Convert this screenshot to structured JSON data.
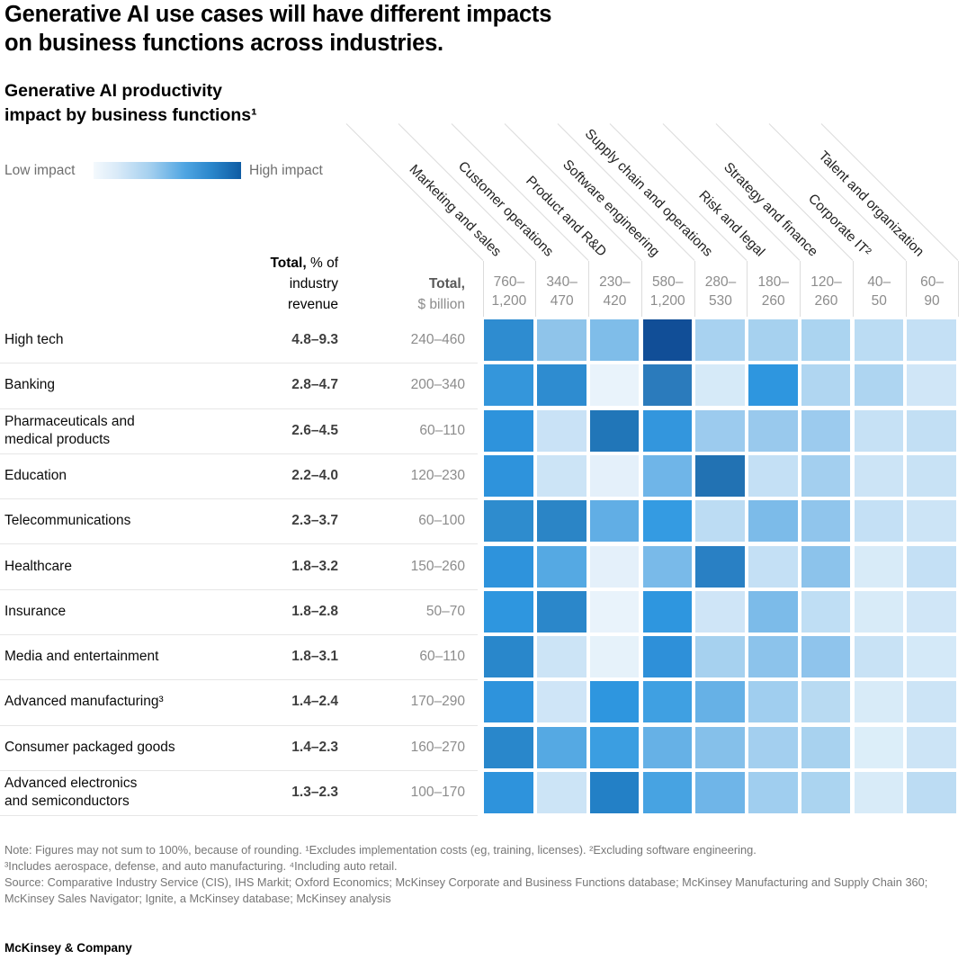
{
  "header": {
    "title": "Generative AI use cases will have different impacts\non business functions across industries.",
    "subtitle": "Generative AI productivity\nimpact by business functions¹"
  },
  "legend": {
    "low_label": "Low impact",
    "high_label": "High impact"
  },
  "table": {
    "pct_header": {
      "bold": "Total,",
      "line1": "% of",
      "line2": "industry",
      "line3": "revenue"
    },
    "usd_header": {
      "bold": "Total,",
      "line2": "$ billion"
    }
  },
  "chart_data": {
    "type": "heatmap",
    "title": "Generative AI productivity impact by business functions¹",
    "legend": {
      "low": "Low impact",
      "high": "High impact",
      "low_color": "#e9f3fb",
      "high_color": "#114e97"
    },
    "columns": [
      {
        "label": "Marketing and sales",
        "total_usd_billion": "760–\n1,200"
      },
      {
        "label": "Customer operations",
        "total_usd_billion": "340–\n470"
      },
      {
        "label": "Product and R&D",
        "total_usd_billion": "230–\n420"
      },
      {
        "label": "Software engineering",
        "total_usd_billion": "580–\n1,200"
      },
      {
        "label": "Supply chain and operations",
        "total_usd_billion": "280–\n530"
      },
      {
        "label": "Risk and legal",
        "total_usd_billion": "180–\n260"
      },
      {
        "label": "Strategy and finance",
        "total_usd_billion": "120–\n260"
      },
      {
        "label": "Corporate IT²",
        "total_usd_billion": "40–\n50"
      },
      {
        "label": "Talent and organization",
        "total_usd_billion": "60–\n90"
      }
    ],
    "rows": [
      {
        "label": "High tech",
        "pct_of_revenue": "4.8–9.3",
        "usd_billion": "240–460",
        "cell_colors": [
          "#2e8cd0",
          "#8fc4ea",
          "#7fbde9",
          "#114e97",
          "#a8d2f0",
          "#a6d1ef",
          "#abd4f0",
          "#bbdcf3",
          "#c4e0f5"
        ],
        "impact_0to1": [
          0.75,
          0.4,
          0.42,
          1.0,
          0.33,
          0.33,
          0.32,
          0.27,
          0.24
        ]
      },
      {
        "label": "Banking",
        "pct_of_revenue": "2.8–4.7",
        "usd_billion": "200–340",
        "cell_colors": [
          "#3496db",
          "#2e8cd0",
          "#e9f3fb",
          "#2b7bbc",
          "#d6eaf8",
          "#2e96df",
          "#b0d6f1",
          "#aed5f1",
          "#d0e6f7"
        ],
        "impact_0to1": [
          0.7,
          0.75,
          0.05,
          0.82,
          0.15,
          0.72,
          0.3,
          0.31,
          0.17
        ]
      },
      {
        "label": "Pharmaceuticals and\nmedical products",
        "pct_of_revenue": "2.6–4.5",
        "usd_billion": "60–110",
        "cell_colors": [
          "#2e93dc",
          "#c9e2f6",
          "#2176b8",
          "#3396dd",
          "#9ccbee",
          "#99c9ed",
          "#9ccbee",
          "#c6e1f5",
          "#c2dff4"
        ],
        "impact_0to1": [
          0.72,
          0.21,
          0.87,
          0.7,
          0.38,
          0.39,
          0.38,
          0.22,
          0.23
        ]
      },
      {
        "label": "Education",
        "pct_of_revenue": "2.2–4.0",
        "usd_billion": "120–230",
        "cell_colors": [
          "#2e93dc",
          "#cce4f6",
          "#e4f0fa",
          "#6fb5e8",
          "#2272b3",
          "#c4e0f5",
          "#a3cfef",
          "#cce4f6",
          "#c8e2f5"
        ],
        "impact_0to1": [
          0.72,
          0.2,
          0.08,
          0.52,
          0.89,
          0.23,
          0.35,
          0.2,
          0.21
        ]
      },
      {
        "label": "Telecommunications",
        "pct_of_revenue": "2.3–3.7",
        "usd_billion": "60–100",
        "cell_colors": [
          "#2e8cce",
          "#2b85c6",
          "#61aee5",
          "#349be2",
          "#bcdcf3",
          "#7cbbe9",
          "#90c5ec",
          "#c4e0f5",
          "#cce4f6"
        ],
        "impact_0to1": [
          0.76,
          0.78,
          0.57,
          0.68,
          0.26,
          0.49,
          0.41,
          0.23,
          0.2
        ]
      },
      {
        "label": "Healthcare",
        "pct_of_revenue": "1.8–3.2",
        "usd_billion": "150–260",
        "cell_colors": [
          "#2e93dc",
          "#55a9e3",
          "#e4f0fa",
          "#79bae9",
          "#2980c4",
          "#c4e0f5",
          "#8cc3eb",
          "#d8ebf8",
          "#c4e0f5"
        ],
        "impact_0to1": [
          0.72,
          0.62,
          0.08,
          0.5,
          0.8,
          0.23,
          0.44,
          0.13,
          0.23
        ]
      },
      {
        "label": "Insurance",
        "pct_of_revenue": "1.8–2.8",
        "usd_billion": "50–70",
        "cell_colors": [
          "#2e96df",
          "#2b87ca",
          "#e9f3fb",
          "#2e96df",
          "#cfe5f7",
          "#7cbbe9",
          "#bfdef4",
          "#d8ebf8",
          "#d0e6f7"
        ],
        "impact_0to1": [
          0.71,
          0.78,
          0.05,
          0.71,
          0.19,
          0.49,
          0.25,
          0.13,
          0.18
        ]
      },
      {
        "label": "Media and entertainment",
        "pct_of_revenue": "1.8–3.1",
        "usd_billion": "60–110",
        "cell_colors": [
          "#2987cb",
          "#cce4f6",
          "#e6f2fa",
          "#2e90d9",
          "#a6d1ef",
          "#8cc3eb",
          "#8fc4ec",
          "#c8e2f5",
          "#d4e9f8"
        ],
        "impact_0to1": [
          0.78,
          0.2,
          0.07,
          0.73,
          0.33,
          0.44,
          0.43,
          0.21,
          0.15
        ]
      },
      {
        "label": "Advanced manufacturing³",
        "pct_of_revenue": "1.4–2.4",
        "usd_billion": "170–290",
        "cell_colors": [
          "#2e93dc",
          "#cfe5f7",
          "#2e96df",
          "#3fa0e2",
          "#66b1e6",
          "#a0ceef",
          "#b8daf2",
          "#d8ebf8",
          "#cce4f6"
        ],
        "impact_0to1": [
          0.72,
          0.19,
          0.71,
          0.66,
          0.56,
          0.36,
          0.27,
          0.13,
          0.2
        ]
      },
      {
        "label": "Consumer packaged goods",
        "pct_of_revenue": "1.4–2.3",
        "usd_billion": "160–270",
        "cell_colors": [
          "#2987cb",
          "#55a9e3",
          "#3b9ee1",
          "#66b1e6",
          "#85c0ea",
          "#a3cfef",
          "#a8d2ef",
          "#dceef9",
          "#cce4f6"
        ],
        "impact_0to1": [
          0.78,
          0.62,
          0.67,
          0.56,
          0.42,
          0.35,
          0.33,
          0.11,
          0.2
        ]
      },
      {
        "label": "Advanced electronics\nand semiconductors",
        "pct_of_revenue": "1.3–2.3",
        "usd_billion": "100–170",
        "cell_colors": [
          "#2e93dc",
          "#cce4f6",
          "#2380c6",
          "#47a3e2",
          "#6fb5e8",
          "#a0ceef",
          "#abd4f0",
          "#d8ebf8",
          "#bcdcf3"
        ],
        "impact_0to1": [
          0.72,
          0.2,
          0.8,
          0.64,
          0.52,
          0.36,
          0.32,
          0.13,
          0.26
        ]
      }
    ]
  },
  "footnotes": {
    "note": "Note: Figures may not sum to 100%, because of rounding. ¹Excludes implementation costs (eg, training, licenses). ²Excluding software engineering.\n³Includes aerospace, defense, and auto manufacturing. ⁴Including auto retail.",
    "source": "Source: Comparative Industry Service (CIS), IHS Markit; Oxford Economics; McKinsey Corporate and Business Functions database; McKinsey Manufacturing and Supply Chain 360; McKinsey Sales Navigator; Ignite, a McKinsey database; McKinsey analysis"
  },
  "footer": {
    "brand": "McKinsey & Company"
  }
}
